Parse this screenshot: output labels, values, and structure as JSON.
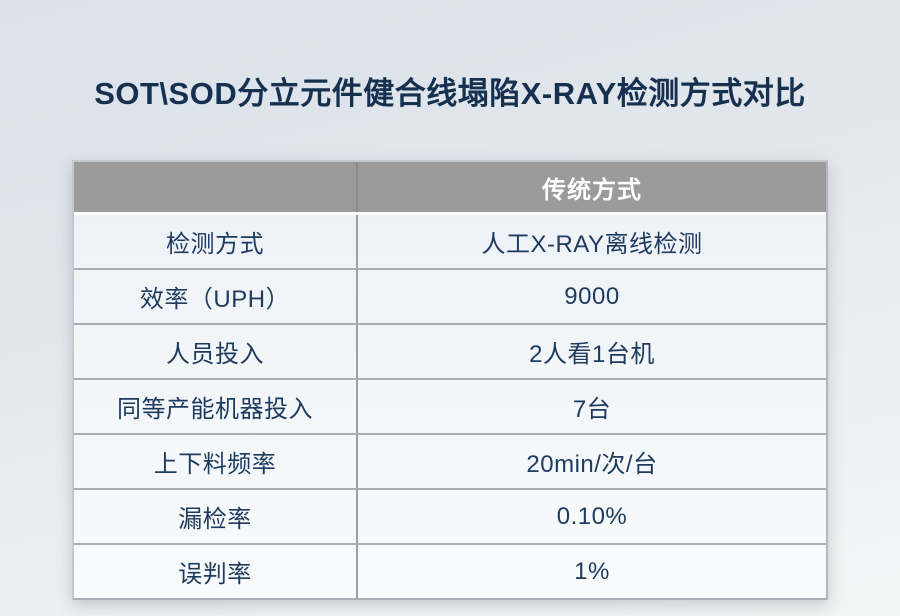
{
  "page": {
    "title": "SOT\\SOD分立元件健合线塌陷X-RAY检测方式对比"
  },
  "table": {
    "header": {
      "col1": "",
      "col2": "传统方式"
    },
    "rows": [
      {
        "label": "检测方式",
        "value": "人工X-RAY离线检测"
      },
      {
        "label": "效率（UPH）",
        "value": "9000"
      },
      {
        "label": "人员投入",
        "value": "2人看1台机"
      },
      {
        "label": "同等产能机器投入",
        "value": "7台"
      },
      {
        "label": "上下料频率",
        "value": "20min/次/台"
      },
      {
        "label": "漏检率",
        "value": "0.10%"
      },
      {
        "label": "误判率",
        "value": "1%"
      }
    ]
  },
  "chart_data": {
    "type": "table",
    "title": "SOT\\SOD分立元件健合线塌陷X-RAY检测方式对比",
    "columns": [
      "",
      "传统方式"
    ],
    "rows": [
      [
        "检测方式",
        "人工X-RAY离线检测"
      ],
      [
        "效率（UPH）",
        "9000"
      ],
      [
        "人员投入",
        "2人看1台机"
      ],
      [
        "同等产能机器投入",
        "7台"
      ],
      [
        "上下料频率",
        "20min/次/台"
      ],
      [
        "漏检率",
        "0.10%"
      ],
      [
        "误判率",
        "1%"
      ]
    ]
  },
  "colors": {
    "title_text": "#16304f",
    "header_bg": "#9b9b9b",
    "header_text": "#ffffff",
    "cell_text": "#1d3a5f",
    "cell_bg": "#f1f5f9",
    "grid_line": "#a9aeb3",
    "background_top": "#dbe1e9",
    "background_bottom": "#f3f4f4"
  }
}
